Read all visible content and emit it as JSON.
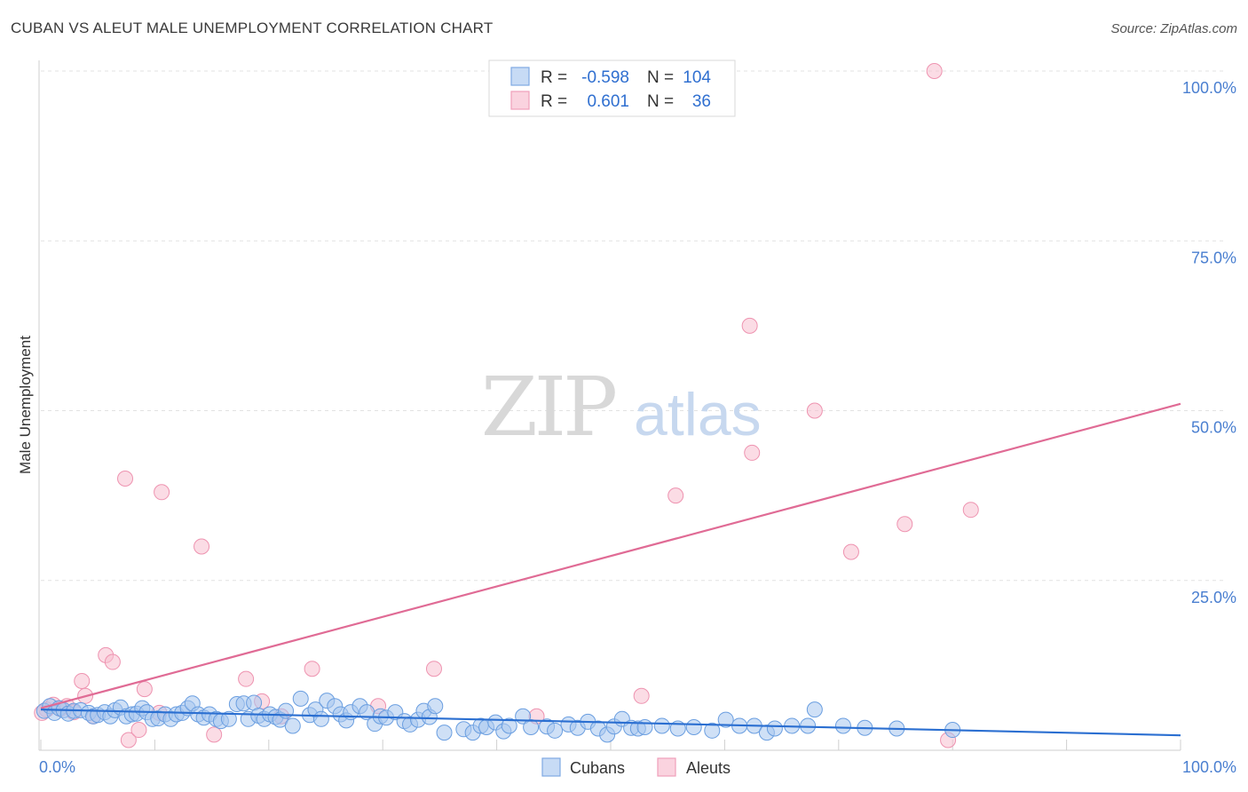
{
  "title": "CUBAN VS ALEUT MALE UNEMPLOYMENT CORRELATION CHART",
  "source": "Source: ZipAtlas.com",
  "watermark": {
    "zip": "ZIP",
    "atlas": "atlas"
  },
  "colors": {
    "cubans_fill": "#a8c6ef",
    "cubans_stroke": "#6a9ee0",
    "cubans_line": "#2b6fd1",
    "aleuts_fill": "#f7bfd0",
    "aleuts_stroke": "#ee93b0",
    "aleuts_line": "#e06b95",
    "tick": "#4a7fd0"
  },
  "legend": {
    "rows": [
      {
        "r_label": "R =",
        "r_value": "-0.598",
        "n_label": "N =",
        "n_value": "104"
      },
      {
        "r_label": "R =",
        "r_value": "0.601",
        "n_label": "N =",
        "n_value": "36"
      }
    ]
  },
  "chart_data": {
    "type": "scatter",
    "title": "CUBAN VS ALEUT MALE UNEMPLOYMENT CORRELATION CHART",
    "xlabel": "",
    "ylabel": "Male Unemployment",
    "xlim": [
      0,
      100
    ],
    "ylim": [
      0,
      100
    ],
    "x_tick_labels": [
      "0.0%",
      "100.0%"
    ],
    "y_tick_labels": [
      "25.0%",
      "50.0%",
      "75.0%",
      "100.0%"
    ],
    "y_ticks": [
      25,
      50,
      75,
      100
    ],
    "grid": true,
    "series": [
      {
        "name": "Cubans",
        "r": -0.598,
        "n": 104,
        "trend": {
          "x0": 0,
          "y0": 6.0,
          "x1": 100,
          "y1": 2.2
        },
        "points": [
          [
            0.3,
            5.8
          ],
          [
            0.8,
            6.5
          ],
          [
            1.2,
            5.5
          ],
          [
            1.6,
            6.2
          ],
          [
            2.0,
            5.9
          ],
          [
            2.4,
            5.4
          ],
          [
            2.9,
            5.8
          ],
          [
            3.5,
            5.9
          ],
          [
            4.2,
            5.5
          ],
          [
            4.6,
            5.0
          ],
          [
            5.0,
            5.2
          ],
          [
            5.6,
            5.6
          ],
          [
            6.1,
            5.0
          ],
          [
            6.5,
            5.9
          ],
          [
            7.0,
            6.3
          ],
          [
            7.5,
            5.0
          ],
          [
            8.0,
            5.3
          ],
          [
            8.4,
            5.4
          ],
          [
            8.9,
            6.2
          ],
          [
            9.3,
            5.6
          ],
          [
            9.8,
            4.6
          ],
          [
            10.3,
            4.7
          ],
          [
            10.9,
            5.3
          ],
          [
            11.4,
            4.6
          ],
          [
            11.9,
            5.3
          ],
          [
            12.4,
            5.5
          ],
          [
            12.9,
            6.2
          ],
          [
            13.3,
            6.9
          ],
          [
            13.8,
            5.3
          ],
          [
            14.3,
            4.8
          ],
          [
            14.8,
            5.3
          ],
          [
            15.4,
            4.6
          ],
          [
            15.8,
            4.3
          ],
          [
            16.5,
            4.6
          ],
          [
            17.2,
            6.8
          ],
          [
            17.8,
            6.9
          ],
          [
            18.2,
            4.6
          ],
          [
            18.7,
            7.0
          ],
          [
            19.1,
            5.1
          ],
          [
            19.6,
            4.6
          ],
          [
            20.1,
            5.3
          ],
          [
            20.6,
            4.9
          ],
          [
            21.0,
            4.5
          ],
          [
            21.5,
            5.8
          ],
          [
            22.1,
            3.6
          ],
          [
            22.8,
            7.6
          ],
          [
            23.6,
            5.2
          ],
          [
            24.1,
            6.0
          ],
          [
            24.6,
            4.6
          ],
          [
            25.1,
            7.3
          ],
          [
            25.8,
            6.5
          ],
          [
            26.3,
            5.3
          ],
          [
            26.8,
            4.4
          ],
          [
            27.2,
            5.6
          ],
          [
            28.0,
            6.5
          ],
          [
            28.6,
            5.6
          ],
          [
            29.3,
            3.9
          ],
          [
            29.8,
            5.0
          ],
          [
            30.3,
            4.8
          ],
          [
            31.1,
            5.6
          ],
          [
            31.9,
            4.3
          ],
          [
            32.4,
            3.8
          ],
          [
            33.1,
            4.5
          ],
          [
            33.6,
            5.8
          ],
          [
            34.1,
            4.9
          ],
          [
            34.6,
            6.5
          ],
          [
            35.4,
            2.6
          ],
          [
            37.1,
            3.1
          ],
          [
            37.9,
            2.6
          ],
          [
            38.6,
            3.6
          ],
          [
            39.1,
            3.4
          ],
          [
            39.9,
            4.1
          ],
          [
            40.6,
            2.8
          ],
          [
            41.1,
            3.6
          ],
          [
            42.3,
            5.0
          ],
          [
            43.0,
            3.4
          ],
          [
            44.4,
            3.5
          ],
          [
            45.1,
            2.9
          ],
          [
            46.3,
            3.8
          ],
          [
            47.1,
            3.3
          ],
          [
            48.0,
            4.2
          ],
          [
            48.9,
            3.2
          ],
          [
            49.7,
            2.3
          ],
          [
            50.3,
            3.5
          ],
          [
            51.0,
            4.6
          ],
          [
            51.8,
            3.3
          ],
          [
            52.4,
            3.2
          ],
          [
            53.0,
            3.4
          ],
          [
            54.5,
            3.6
          ],
          [
            55.9,
            3.2
          ],
          [
            57.3,
            3.4
          ],
          [
            58.9,
            2.9
          ],
          [
            60.1,
            4.5
          ],
          [
            61.3,
            3.6
          ],
          [
            62.6,
            3.6
          ],
          [
            63.7,
            2.6
          ],
          [
            64.4,
            3.2
          ],
          [
            65.9,
            3.6
          ],
          [
            67.3,
            3.6
          ],
          [
            67.9,
            6.0
          ],
          [
            70.4,
            3.6
          ],
          [
            72.3,
            3.3
          ],
          [
            75.1,
            3.2
          ],
          [
            80.0,
            3.0
          ]
        ]
      },
      {
        "name": "Aleuts",
        "r": 0.601,
        "n": 36,
        "trend": {
          "x0": 0,
          "y0": 6.2,
          "x1": 100,
          "y1": 51.0
        },
        "points": [
          [
            0.5,
            6.0
          ],
          [
            1.1,
            6.7
          ],
          [
            1.7,
            6.1
          ],
          [
            2.3,
            6.5
          ],
          [
            2.9,
            5.6
          ],
          [
            3.6,
            10.2
          ],
          [
            3.9,
            8.0
          ],
          [
            4.6,
            5.0
          ],
          [
            5.7,
            14.0
          ],
          [
            6.3,
            13.0
          ],
          [
            7.4,
            40.0
          ],
          [
            7.7,
            1.5
          ],
          [
            8.6,
            3.0
          ],
          [
            9.1,
            9.0
          ],
          [
            10.4,
            5.5
          ],
          [
            10.6,
            38.0
          ],
          [
            14.1,
            30.0
          ],
          [
            15.2,
            2.3
          ],
          [
            18.0,
            10.5
          ],
          [
            19.4,
            7.2
          ],
          [
            21.1,
            5.0
          ],
          [
            23.8,
            12.0
          ],
          [
            29.6,
            6.5
          ],
          [
            34.5,
            12.0
          ],
          [
            43.5,
            5.0
          ],
          [
            52.7,
            8.0
          ],
          [
            55.7,
            37.5
          ],
          [
            62.2,
            62.5
          ],
          [
            62.4,
            43.8
          ],
          [
            67.9,
            50.0
          ],
          [
            71.1,
            29.2
          ],
          [
            75.8,
            33.3
          ],
          [
            78.4,
            100.0
          ],
          [
            79.6,
            1.5
          ],
          [
            81.6,
            35.4
          ],
          [
            0.1,
            5.5
          ]
        ]
      }
    ]
  },
  "bottom_legend": {
    "items": [
      "Cubans",
      "Aleuts"
    ]
  }
}
